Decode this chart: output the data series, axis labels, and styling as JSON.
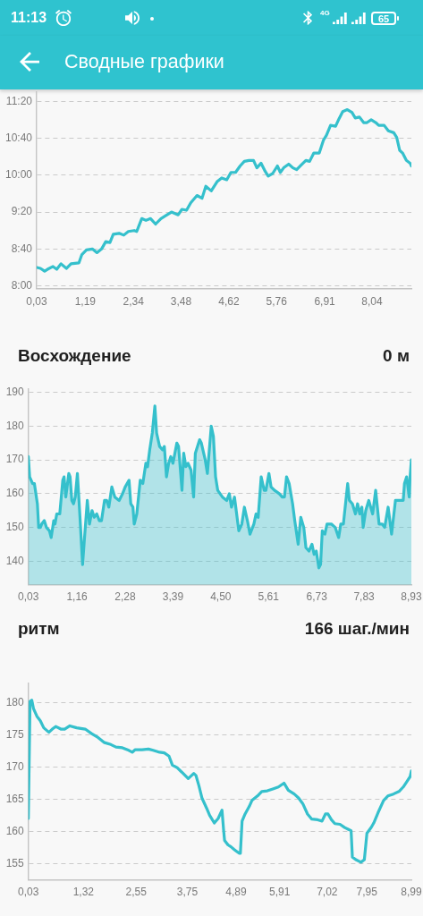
{
  "chart_data": [
    {
      "type": "line",
      "title": "Сводные графики",
      "annotations": [
        "11:13",
        "4G",
        "65"
      ],
      "x": [
        0.03,
        0.12,
        0.22,
        0.29,
        0.42,
        0.51,
        0.61,
        0.74,
        0.85,
        1.04,
        1.11,
        1.22,
        1.36,
        1.47,
        1.58,
        1.68,
        1.78,
        1.86,
        2.0,
        2.11,
        2.22,
        2.36,
        2.42,
        2.54,
        2.64,
        2.75,
        2.87,
        3.0,
        3.11,
        3.25,
        3.41,
        3.5,
        3.61,
        3.71,
        3.86,
        3.98,
        4.07,
        4.2,
        4.34,
        4.45,
        4.57,
        4.67,
        4.78,
        4.89,
        4.99,
        5.1,
        5.21,
        5.29,
        5.39,
        5.49,
        5.56,
        5.67,
        5.78,
        5.85,
        5.93,
        6.05,
        6.15,
        6.24,
        6.35,
        6.46,
        6.55,
        6.65,
        6.78,
        6.88,
        6.95,
        7.05,
        7.17,
        7.25,
        7.34,
        7.45,
        7.56,
        7.64,
        7.74,
        7.84,
        7.92,
        8.02,
        8.13,
        8.2,
        8.33,
        8.43,
        8.56,
        8.63,
        8.7,
        8.77,
        8.86,
        8.95,
        8.98
      ],
      "values": [
        500,
        499,
        496,
        498,
        501,
        498,
        504,
        499,
        504,
        505,
        514,
        519,
        520,
        516,
        520,
        528,
        527,
        536,
        537,
        535,
        539,
        540,
        539,
        553,
        551,
        553,
        547,
        553,
        556,
        560,
        557,
        563,
        562,
        570,
        578,
        575,
        588,
        583,
        593,
        597,
        595,
        603,
        603,
        610,
        615,
        616,
        616,
        608,
        613,
        604,
        599,
        602,
        610,
        603,
        608,
        612,
        608,
        606,
        611,
        616,
        615,
        624,
        624,
        638,
        643,
        654,
        653,
        661,
        669,
        671,
        668,
        662,
        663,
        657,
        657,
        660,
        657,
        654,
        654,
        648,
        646,
        641,
        627,
        624,
        616,
        613,
        610
      ],
      "color": "#35c0cc",
      "xlim": [
        0.03,
        8.98
      ],
      "xticks": [
        {
          "value": 0.03,
          "label": "0,03"
        },
        {
          "value": 1.19,
          "label": "1,19"
        },
        {
          "value": 2.34,
          "label": "2,34"
        },
        {
          "value": 3.48,
          "label": "3,48"
        },
        {
          "value": 4.62,
          "label": "4,62"
        },
        {
          "value": 5.76,
          "label": "5,76"
        },
        {
          "value": 6.91,
          "label": "6,91"
        },
        {
          "value": 8.04,
          "label": "8,04"
        }
      ],
      "ylim": [
        477,
        690
      ],
      "yticks": [
        {
          "value": 480,
          "label": "8:00"
        },
        {
          "value": 520,
          "label": "8:40"
        },
        {
          "value": 560,
          "label": "9:20"
        },
        {
          "value": 600,
          "label": "10:00"
        },
        {
          "value": 640,
          "label": "10:40"
        },
        {
          "value": 680,
          "label": "11:20"
        }
      ],
      "grid": "y",
      "marker": "none"
    },
    {
      "type": "area",
      "title": "Восхождение",
      "subtitle": "0 м",
      "x": [
        0.03,
        0.06,
        0.13,
        0.17,
        0.24,
        0.27,
        0.31,
        0.34,
        0.4,
        0.45,
        0.52,
        0.56,
        0.62,
        0.65,
        0.69,
        0.76,
        0.83,
        0.86,
        0.9,
        0.97,
        1.0,
        1.04,
        1.08,
        1.12,
        1.17,
        1.23,
        1.29,
        1.33,
        1.4,
        1.45,
        1.51,
        1.56,
        1.62,
        1.68,
        1.73,
        1.8,
        1.85,
        1.9,
        1.97,
        2.04,
        2.14,
        2.22,
        2.28,
        2.37,
        2.41,
        2.46,
        2.49,
        2.55,
        2.63,
        2.69,
        2.76,
        2.8,
        2.85,
        2.91,
        2.97,
        3.01,
        3.08,
        3.15,
        3.19,
        3.24,
        3.29,
        3.34,
        3.39,
        3.48,
        3.52,
        3.6,
        3.64,
        3.69,
        3.74,
        3.81,
        3.87,
        3.91,
        4.01,
        4.05,
        4.14,
        4.19,
        4.28,
        4.33,
        4.38,
        4.43,
        4.54,
        4.64,
        4.7,
        4.75,
        4.82,
        4.85,
        4.92,
        4.99,
        5.05,
        5.12,
        5.18,
        5.27,
        5.32,
        5.37,
        5.44,
        5.51,
        5.55,
        5.62,
        5.67,
        5.75,
        5.86,
        5.93,
        5.98,
        6.03,
        6.09,
        6.17,
        6.22,
        6.3,
        6.36,
        6.43,
        6.48,
        6.55,
        6.62,
        6.67,
        6.72,
        6.78,
        6.82,
        6.86,
        6.92,
        6.97,
        7.07,
        7.16,
        7.24,
        7.29,
        7.35,
        7.4,
        7.45,
        7.49,
        7.56,
        7.63,
        7.68,
        7.73,
        7.78,
        7.81,
        7.87,
        7.94,
        8.03,
        8.1,
        8.18,
        8.25,
        8.31,
        8.39,
        8.47,
        8.56,
        8.67,
        8.74,
        8.77,
        8.82,
        8.88,
        8.9,
        8.93
      ],
      "values": [
        171,
        165,
        163,
        163,
        157,
        150,
        150,
        151,
        152,
        150,
        149,
        147,
        152,
        151,
        154,
        154,
        164,
        165,
        159,
        166,
        165,
        158,
        157,
        159,
        166,
        153,
        139,
        146,
        158,
        151,
        155,
        153,
        154,
        152,
        152,
        158,
        158,
        156,
        162,
        159,
        158,
        160,
        162,
        164,
        157,
        156,
        151,
        154,
        164,
        163,
        169,
        168,
        173,
        178,
        186,
        178,
        174,
        173,
        174,
        165,
        169,
        171,
        169,
        175,
        174,
        161,
        172,
        168,
        169,
        167,
        159,
        172,
        176,
        175,
        170,
        166,
        180,
        177,
        165,
        161,
        159,
        158,
        160,
        156,
        159,
        156,
        149,
        151,
        156,
        152,
        148,
        151,
        154,
        153,
        165,
        161,
        161,
        166,
        162,
        161,
        160,
        159,
        159,
        165,
        163,
        157,
        152,
        145,
        153,
        150,
        144,
        143,
        145,
        142,
        143,
        138,
        139,
        149,
        148,
        151,
        151,
        150,
        147,
        151,
        151,
        157,
        163,
        158,
        157,
        154,
        157,
        154,
        156,
        150,
        155,
        158,
        154,
        161,
        151,
        151,
        150,
        156,
        148,
        158,
        158,
        158,
        163,
        165,
        159,
        165,
        170
      ],
      "color": "#35c0cc",
      "xlim": [
        0.03,
        8.93
      ],
      "xticks": [
        {
          "value": 0.03,
          "label": "0,03"
        },
        {
          "value": 1.16,
          "label": "1,16"
        },
        {
          "value": 2.28,
          "label": "2,28"
        },
        {
          "value": 3.39,
          "label": "3,39"
        },
        {
          "value": 4.5,
          "label": "4,50"
        },
        {
          "value": 5.61,
          "label": "5,61"
        },
        {
          "value": 6.73,
          "label": "6,73"
        },
        {
          "value": 7.83,
          "label": "7,83"
        },
        {
          "value": 8.93,
          "label": "8,93"
        }
      ],
      "ylim": [
        133,
        191
      ],
      "yticks": [
        140,
        150,
        160,
        170,
        180,
        190
      ],
      "grid": "y",
      "marker": "none"
    },
    {
      "type": "line",
      "title": "ритм",
      "subtitle": "166 шаг./мин",
      "x": [
        0.03,
        0.07,
        0.11,
        0.15,
        0.23,
        0.31,
        0.39,
        0.51,
        0.59,
        0.67,
        0.79,
        0.88,
        1.0,
        1.16,
        1.36,
        1.51,
        1.66,
        1.81,
        1.96,
        2.08,
        2.23,
        2.38,
        2.46,
        2.53,
        2.69,
        2.84,
        2.95,
        3.1,
        3.21,
        3.32,
        3.4,
        3.51,
        3.62,
        3.77,
        3.9,
        3.95,
        4.02,
        4.09,
        4.2,
        4.27,
        4.38,
        4.47,
        4.56,
        4.6,
        4.62,
        4.7,
        4.77,
        4.84,
        4.88,
        4.96,
        4.99,
        5.03,
        5.1,
        5.2,
        5.26,
        5.39,
        5.49,
        5.62,
        5.75,
        5.88,
        6.01,
        6.11,
        6.25,
        6.35,
        6.45,
        6.56,
        6.66,
        6.8,
        6.9,
        6.98,
        7.04,
        7.12,
        7.2,
        7.32,
        7.43,
        7.52,
        7.58,
        7.61,
        7.69,
        7.81,
        7.89,
        7.95,
        8.05,
        8.11,
        8.21,
        8.34,
        8.44,
        8.57,
        8.7,
        8.8,
        8.89,
        8.96,
        8.99
      ],
      "values": [
        162,
        180.2,
        180.4,
        179.1,
        177.9,
        177.2,
        176.1,
        175.4,
        175.9,
        176.3,
        175.9,
        175.9,
        176.4,
        176.1,
        175.9,
        175.2,
        174.6,
        173.8,
        173.5,
        173.1,
        173.0,
        172.6,
        172.3,
        172.7,
        172.7,
        172.8,
        172.6,
        172.3,
        172.2,
        171.7,
        170.3,
        169.9,
        169.2,
        168.2,
        169.0,
        168.7,
        167.1,
        165.2,
        163.6,
        162.5,
        161.3,
        162.0,
        163.3,
        160.0,
        158.6,
        157.9,
        157.6,
        157.2,
        157.0,
        156.6,
        156.6,
        161.6,
        162.7,
        163.9,
        164.8,
        165.5,
        166.2,
        166.3,
        166.6,
        166.9,
        167.5,
        166.4,
        165.8,
        165.2,
        164.3,
        162.7,
        161.9,
        161.8,
        161.6,
        162.7,
        162.7,
        161.8,
        161.2,
        161.1,
        160.6,
        160.3,
        160.1,
        156.0,
        155.6,
        155.2,
        155.6,
        159.7,
        160.6,
        161.3,
        162.9,
        164.8,
        165.5,
        165.8,
        166.2,
        166.9,
        167.8,
        168.5,
        169.4
      ],
      "color": "#35c0cc",
      "xlim": [
        0.03,
        8.99
      ],
      "xticks": [
        {
          "value": 0.03,
          "label": "0,03"
        },
        {
          "value": 1.32,
          "label": "1,32"
        },
        {
          "value": 2.55,
          "label": "2,55"
        },
        {
          "value": 3.75,
          "label": "3,75"
        },
        {
          "value": 4.89,
          "label": "4,89"
        },
        {
          "value": 5.91,
          "label": "5,91"
        },
        {
          "value": 7.02,
          "label": "7,02"
        },
        {
          "value": 7.95,
          "label": "7,95"
        },
        {
          "value": 8.99,
          "label": "8,99"
        }
      ],
      "ylim": [
        152.5,
        183
      ],
      "yticks": [
        155,
        160,
        165,
        170,
        175,
        180
      ],
      "grid": "y",
      "marker": "none"
    }
  ]
}
